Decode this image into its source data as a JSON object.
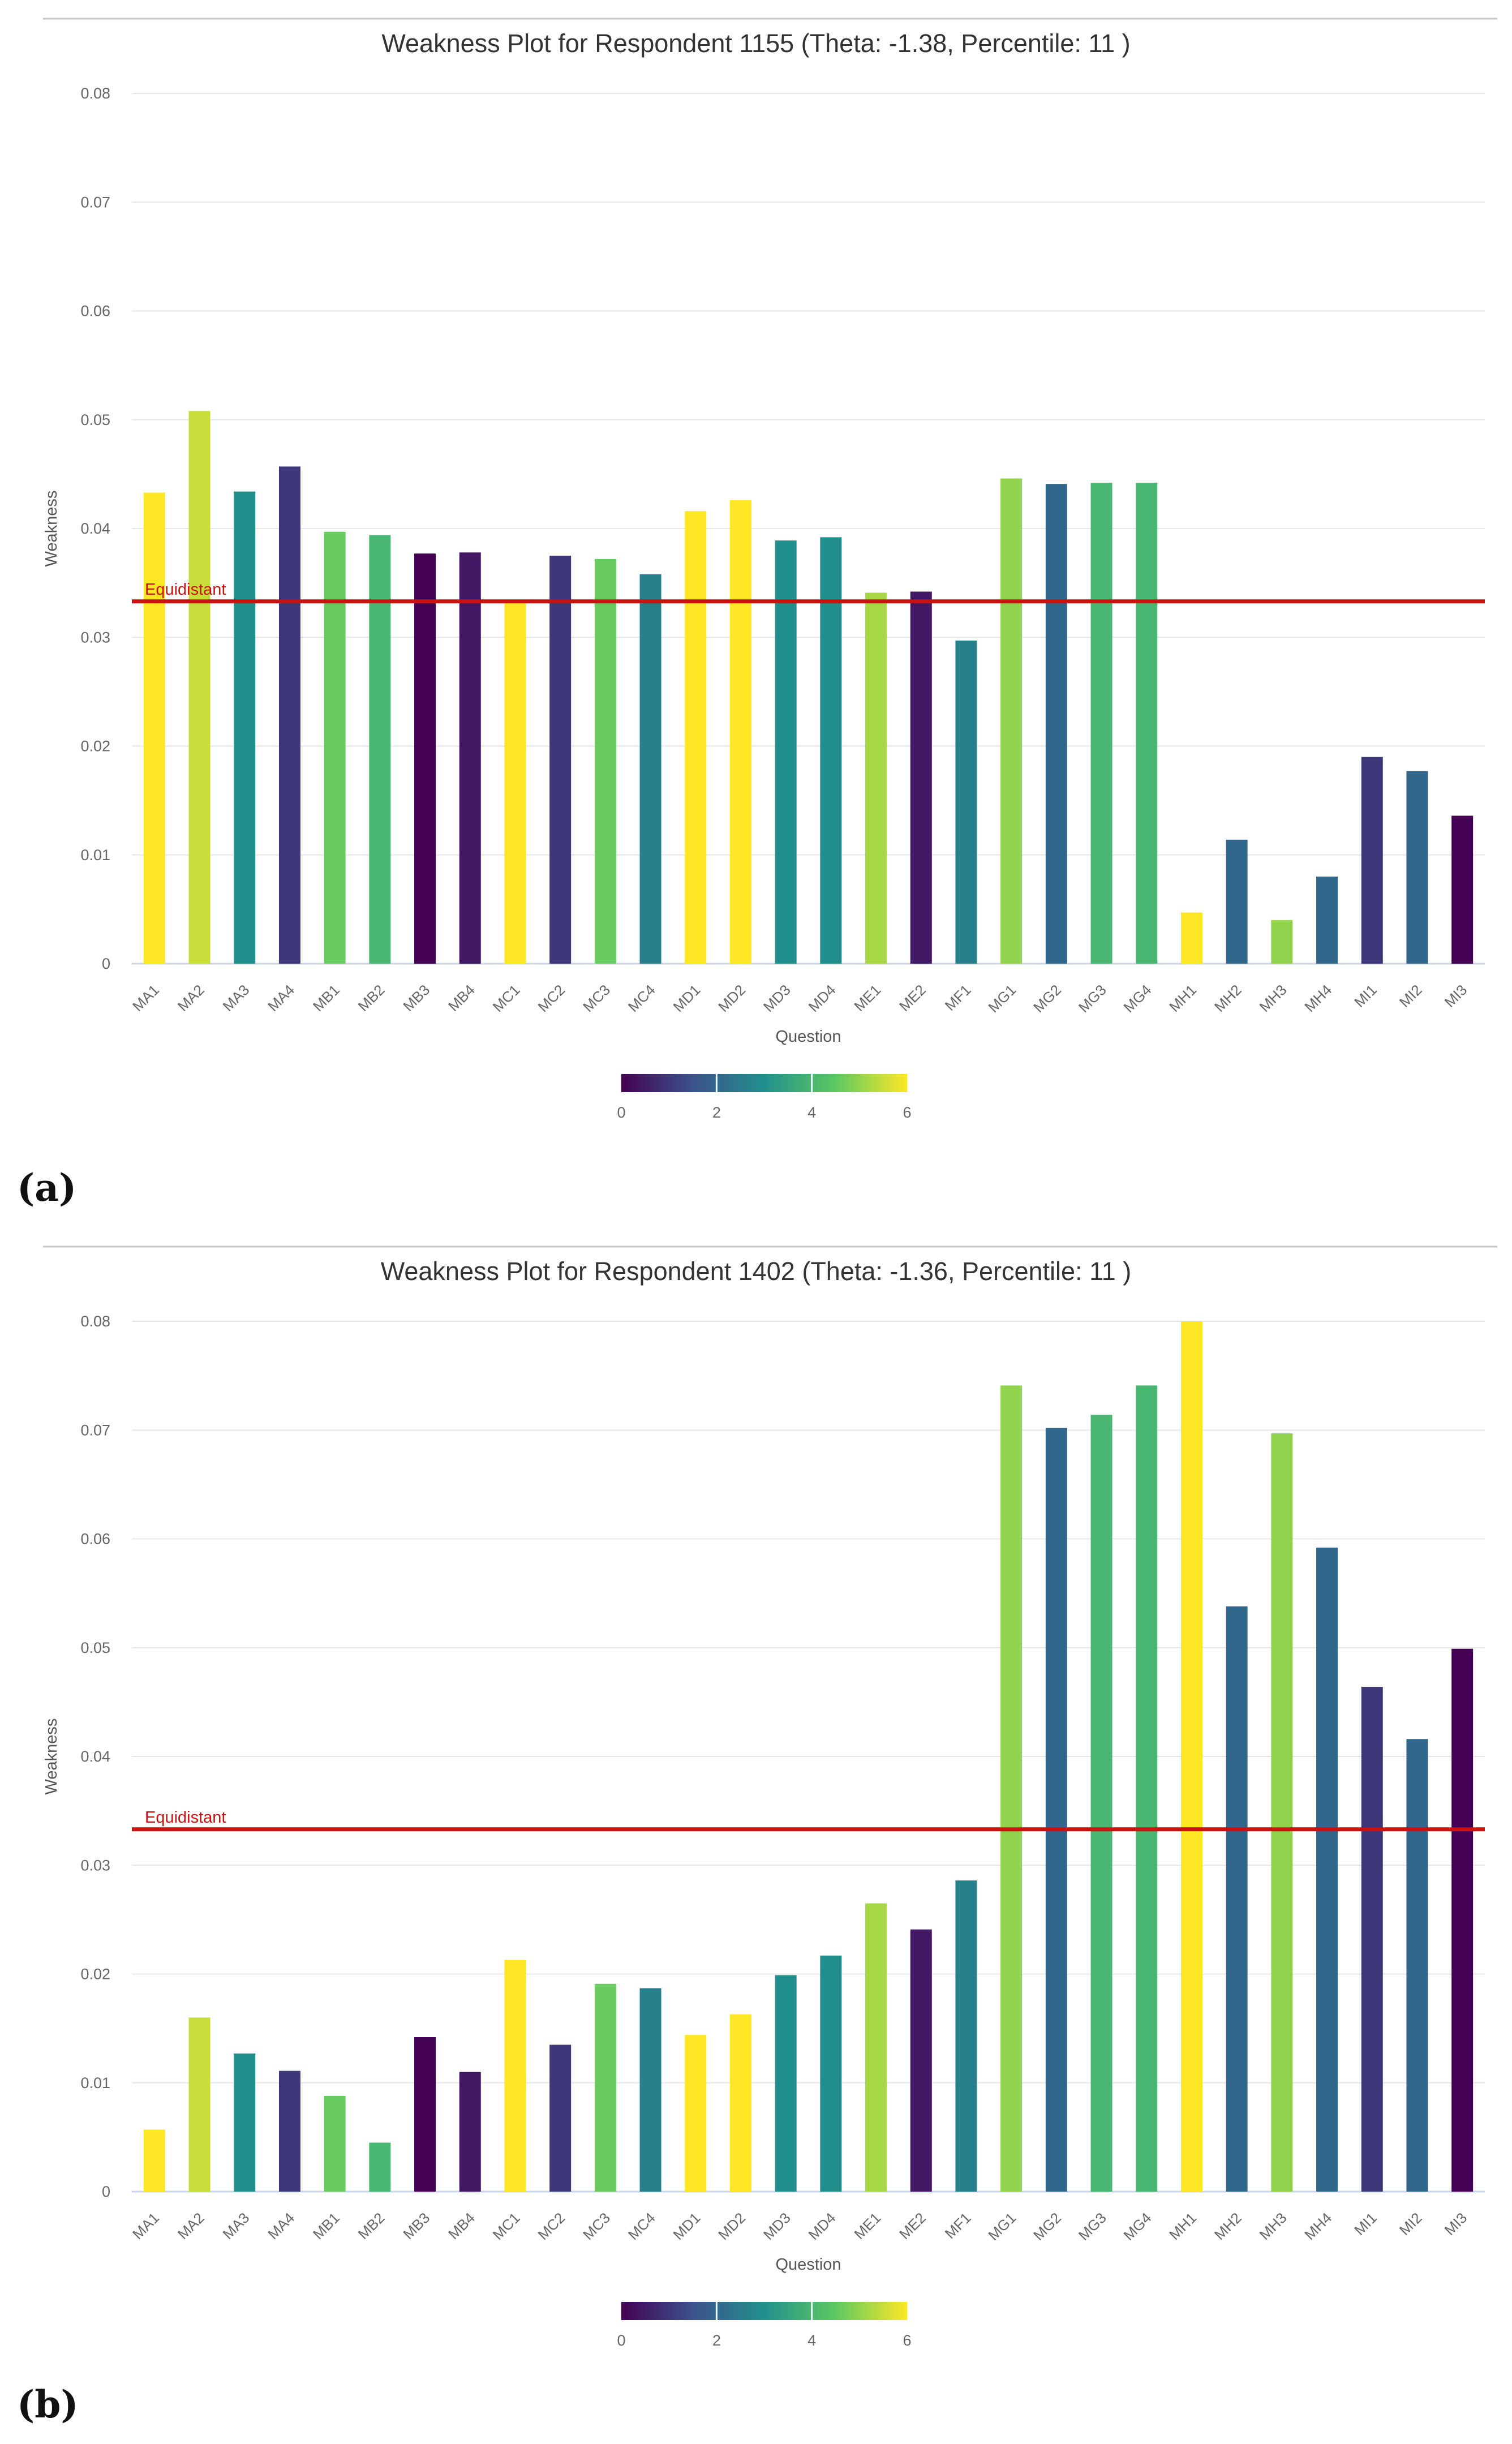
{
  "chart_data": [
    {
      "type": "bar",
      "panel_label": "(a)",
      "title": "Weakness Plot for Respondent 1155 (Theta: -1.38, Percentile: 11 )",
      "xlabel": "Question",
      "ylabel": "Weakness",
      "ylim": [
        0,
        0.08
      ],
      "yticks": [
        0,
        0.01,
        0.02,
        0.03,
        0.04,
        0.05,
        0.06,
        0.07,
        0.08
      ],
      "ytick_labels": [
        "0",
        "0.01",
        "0.02",
        "0.03",
        "0.04",
        "0.05",
        "0.06",
        "0.07",
        "0.08"
      ],
      "grid": true,
      "reference_line": {
        "label": "Equidistant",
        "value": 0.0333,
        "color": "#cc1111"
      },
      "categories": [
        "MA1",
        "MA2",
        "MA3",
        "MA4",
        "MB1",
        "MB2",
        "MB3",
        "MB4",
        "MC1",
        "MC2",
        "MC3",
        "MC4",
        "MD1",
        "MD2",
        "MD3",
        "MD4",
        "ME1",
        "ME2",
        "MF1",
        "MG1",
        "MG2",
        "MG3",
        "MG4",
        "MH1",
        "MH2",
        "MH3",
        "MH4",
        "MI1",
        "MI2",
        "MI3"
      ],
      "values": [
        0.0433,
        0.0508,
        0.0434,
        0.0457,
        0.0397,
        0.0394,
        0.0377,
        0.0378,
        0.0333,
        0.0375,
        0.0372,
        0.0358,
        0.0416,
        0.0426,
        0.0389,
        0.0392,
        0.0341,
        0.0342,
        0.0297,
        0.0446,
        0.0441,
        0.0442,
        0.0442,
        0.0047,
        0.0114,
        0.004,
        0.008,
        0.019,
        0.0177,
        0.0136
      ],
      "color_values": [
        6,
        5.5,
        3,
        1,
        4.6,
        4,
        0,
        0.4,
        6,
        1,
        4.6,
        2.6,
        6,
        6,
        3,
        3,
        5.2,
        0.4,
        2.6,
        5,
        2,
        4,
        4,
        6,
        2,
        5,
        2,
        1,
        2,
        0
      ],
      "colorbar": {
        "min": 0,
        "max": 6,
        "ticks": [
          "0",
          "2",
          "4",
          "6"
        ],
        "colors": [
          "#440154",
          "#3b528b",
          "#21908d",
          "#5dc963",
          "#fde725"
        ]
      }
    },
    {
      "type": "bar",
      "panel_label": "(b)",
      "title": "Weakness Plot for Respondent 1402 (Theta: -1.36, Percentile: 11 )",
      "xlabel": "Question",
      "ylabel": "Weakness",
      "ylim": [
        0,
        0.08
      ],
      "yticks": [
        0,
        0.01,
        0.02,
        0.03,
        0.04,
        0.05,
        0.06,
        0.07,
        0.08
      ],
      "ytick_labels": [
        "0",
        "0.01",
        "0.02",
        "0.03",
        "0.04",
        "0.05",
        "0.06",
        "0.07",
        "0.08"
      ],
      "grid": true,
      "reference_line": {
        "label": "Equidistant",
        "value": 0.0333,
        "color": "#cc1111"
      },
      "categories": [
        "MA1",
        "MA2",
        "MA3",
        "MA4",
        "MB1",
        "MB2",
        "MB3",
        "MB4",
        "MC1",
        "MC2",
        "MC3",
        "MC4",
        "MD1",
        "MD2",
        "MD3",
        "MD4",
        "ME1",
        "ME2",
        "MF1",
        "MG1",
        "MG2",
        "MG3",
        "MG4",
        "MH1",
        "MH2",
        "MH3",
        "MH4",
        "MI1",
        "MI2",
        "MI3"
      ],
      "values": [
        0.0057,
        0.016,
        0.0127,
        0.0111,
        0.0088,
        0.0045,
        0.0142,
        0.011,
        0.0213,
        0.0135,
        0.0191,
        0.0187,
        0.0144,
        0.0163,
        0.0199,
        0.0217,
        0.0265,
        0.0241,
        0.0286,
        0.0741,
        0.0702,
        0.0714,
        0.0741,
        0.08,
        0.0538,
        0.0697,
        0.0592,
        0.0464,
        0.0416,
        0.0499
      ],
      "color_values": [
        6,
        5.5,
        3,
        1,
        4.6,
        4,
        0,
        0.4,
        6,
        1,
        4.6,
        2.6,
        6,
        6,
        3,
        3,
        5.2,
        0.4,
        2.6,
        5,
        2,
        4,
        4,
        6,
        2,
        5,
        2,
        1,
        2,
        0
      ],
      "colorbar": {
        "min": 0,
        "max": 6,
        "ticks": [
          "0",
          "2",
          "4",
          "6"
        ],
        "colors": [
          "#440154",
          "#3b528b",
          "#21908d",
          "#5dc963",
          "#fde725"
        ]
      }
    }
  ]
}
